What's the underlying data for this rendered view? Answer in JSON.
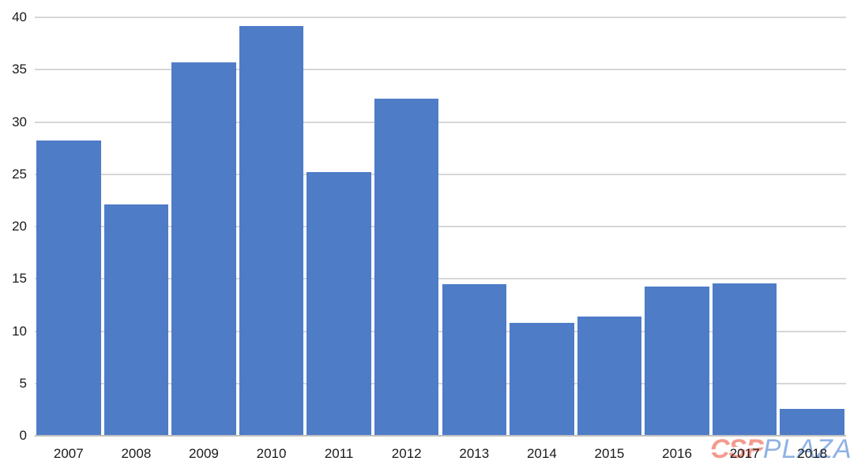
{
  "chart_data": {
    "type": "bar",
    "title": "",
    "categories": [
      "2007",
      "2008",
      "2009",
      "2010",
      "2011",
      "2012",
      "2013",
      "2014",
      "2015",
      "2016",
      "2017",
      "2018"
    ],
    "values": [
      28.2,
      22.1,
      35.7,
      39.2,
      25.2,
      32.2,
      14.5,
      10.8,
      11.4,
      14.3,
      14.6,
      2.6
    ],
    "xlabel": "",
    "ylabel": "",
    "ylim": [
      0,
      40
    ],
    "yticks": [
      0,
      5,
      10,
      15,
      20,
      25,
      30,
      35,
      40
    ],
    "grid": true,
    "legend_position": "none",
    "bar_color": "#4E7CC7",
    "gridline_color": "#D6D6D6",
    "axis_line_color": "#BFBFBF",
    "tick_label_color": "#1A1A1A"
  },
  "watermark": {
    "csp_text": "CSP",
    "plaza_text": "PLAZA",
    "csp_color": "#F39B8E",
    "plaza_color": "#8FB2E5"
  }
}
